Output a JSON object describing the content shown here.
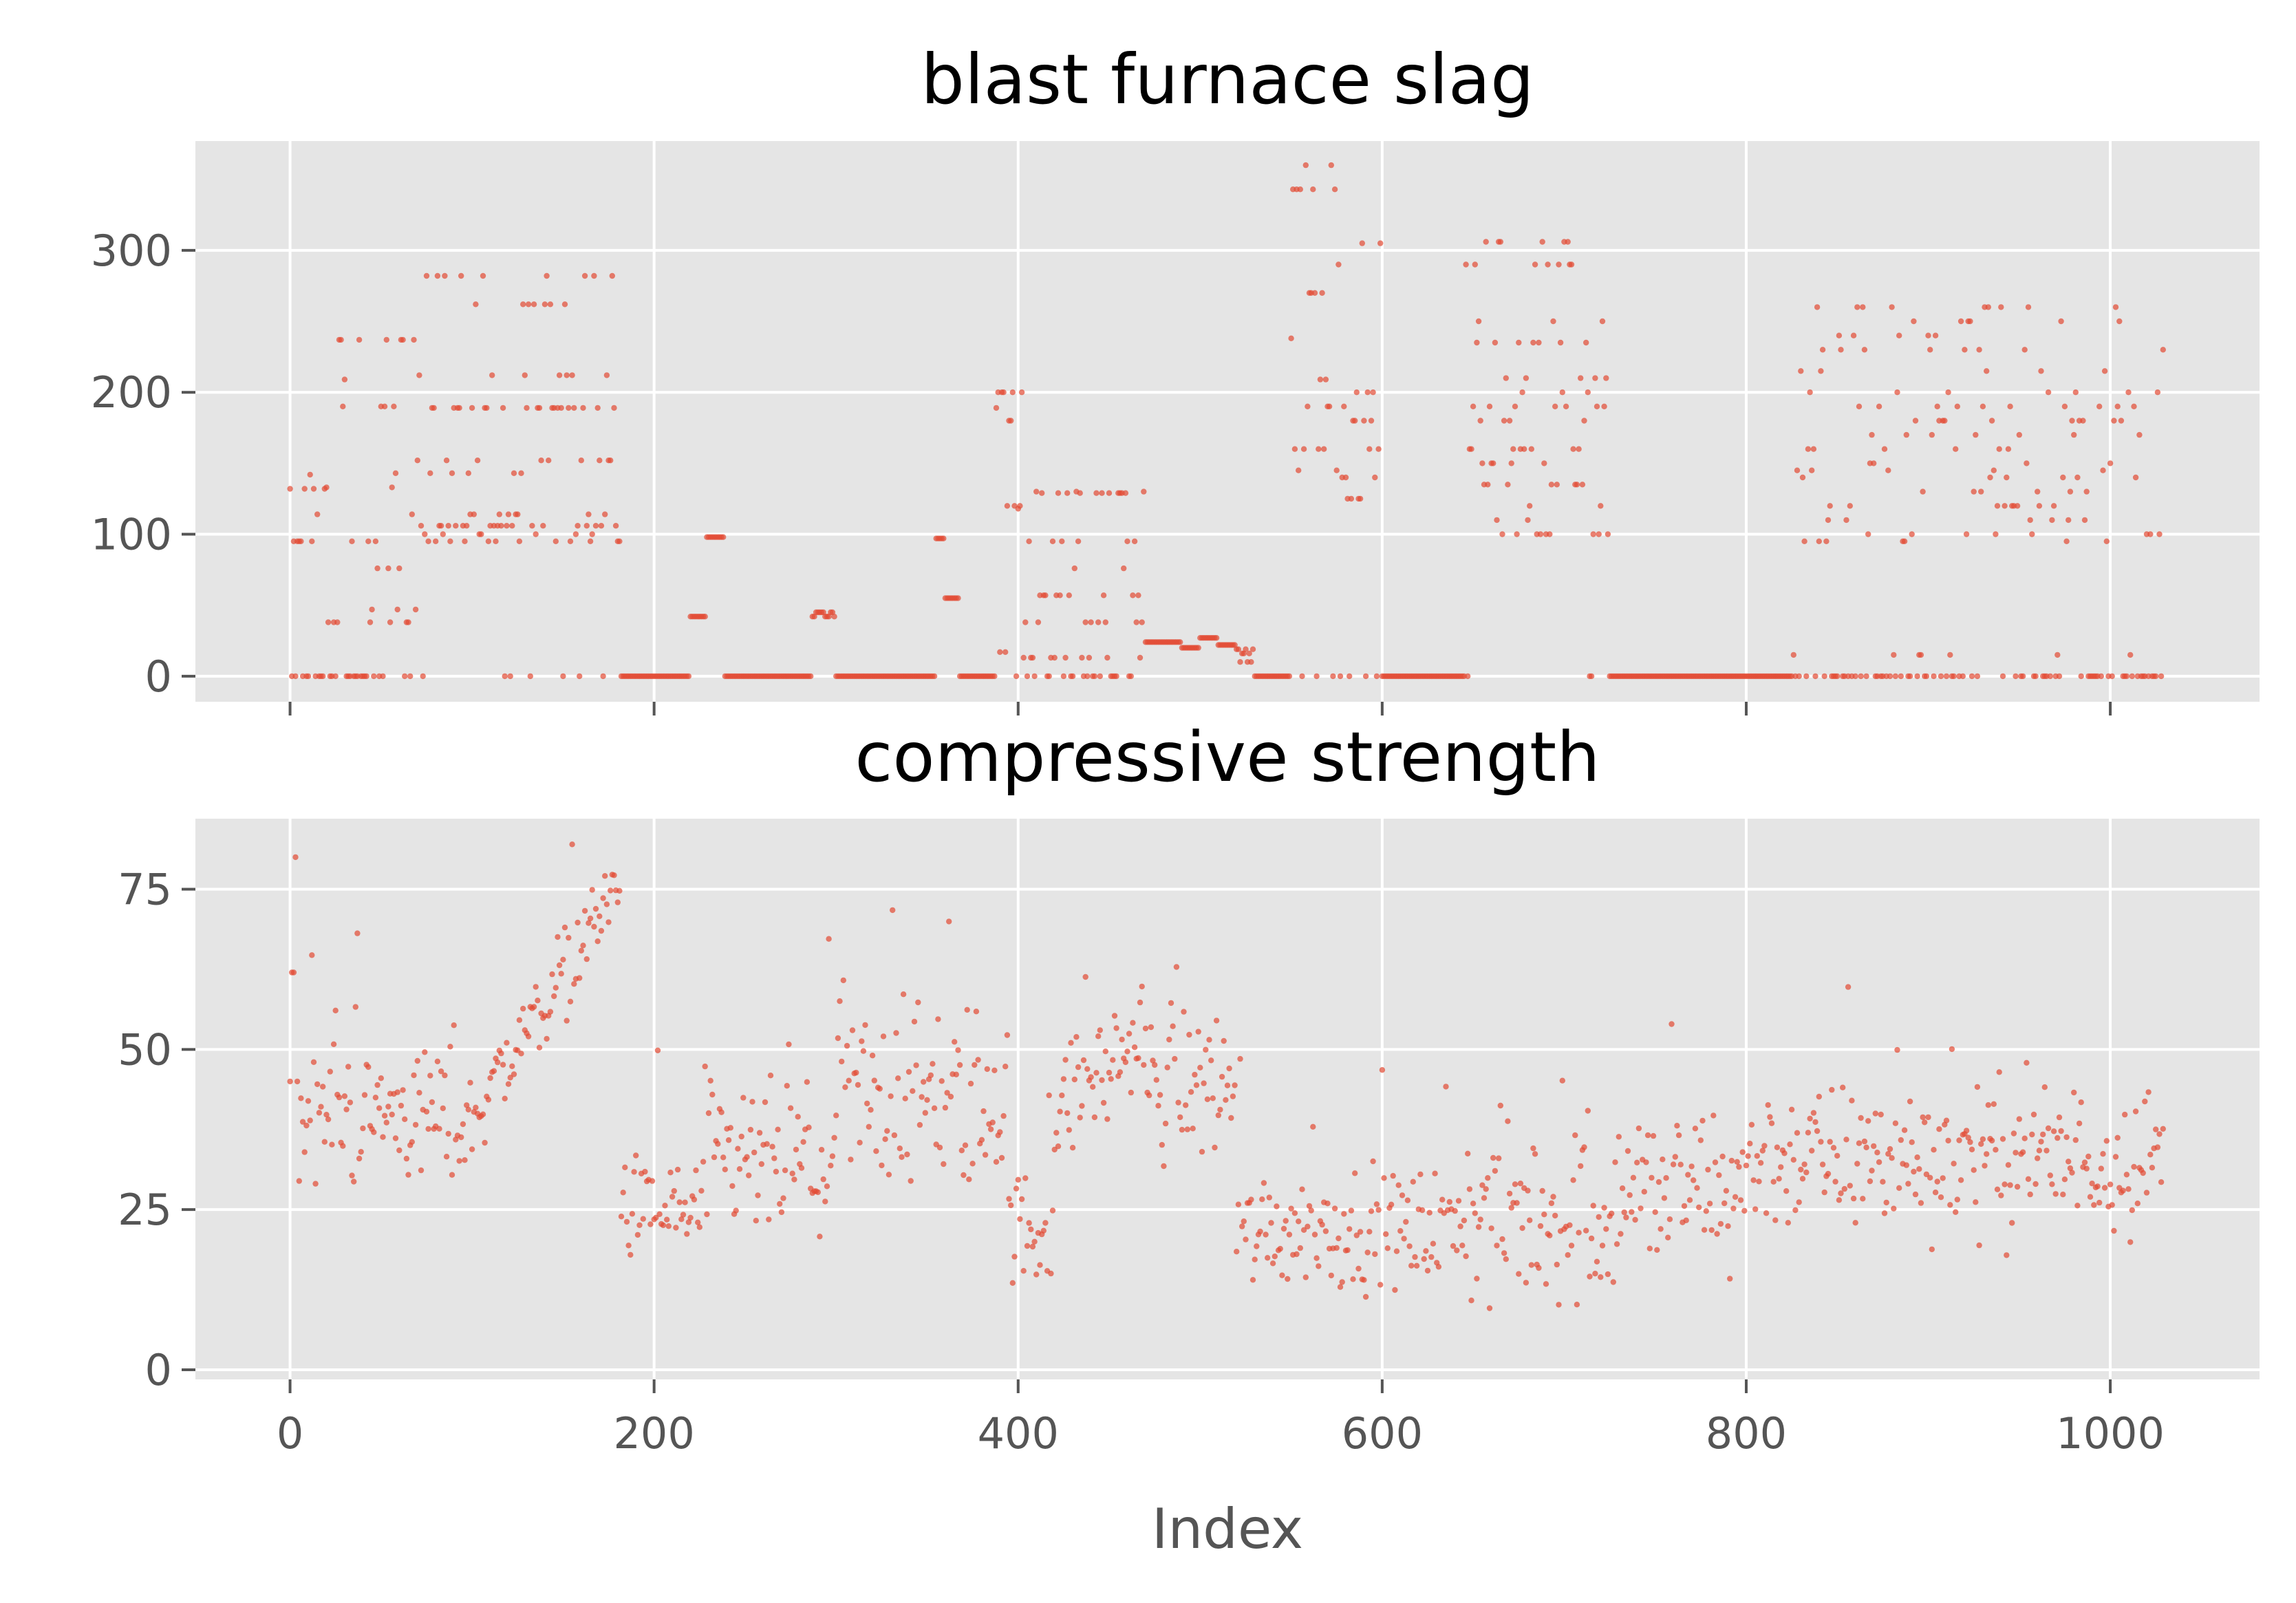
{
  "colors": {
    "point": "#E24A33",
    "panel_bg": "#E5E5E5",
    "grid": "#FFFFFF",
    "tick_label": "#555555"
  },
  "chart_data": [
    {
      "type": "scatter",
      "title": "blast furnace slag",
      "xlabel": "",
      "ylabel": "",
      "xlim": [
        -52,
        1082
      ],
      "ylim": [
        -18,
        377
      ],
      "xticks": [
        0,
        200,
        400,
        600,
        800,
        1000
      ],
      "yticks": [
        0,
        100,
        200,
        300
      ],
      "ytick_labels": [
        "0",
        "100",
        "200",
        "300"
      ],
      "x_tick_labels_shown": false,
      "grid": true,
      "generator": "slag"
    },
    {
      "type": "scatter",
      "title": "compressive strength",
      "xlabel": "Index",
      "ylabel": "",
      "xlim": [
        -52,
        1082
      ],
      "ylim": [
        -1.5,
        86
      ],
      "xticks": [
        0,
        200,
        400,
        600,
        800,
        1000
      ],
      "xtick_labels": [
        "0",
        "200",
        "400",
        "600",
        "800",
        "1000"
      ],
      "yticks": [
        0,
        25,
        50,
        75
      ],
      "ytick_labels": [
        "0",
        "25",
        "50",
        "75"
      ],
      "grid": true,
      "generator": "strength"
    }
  ]
}
